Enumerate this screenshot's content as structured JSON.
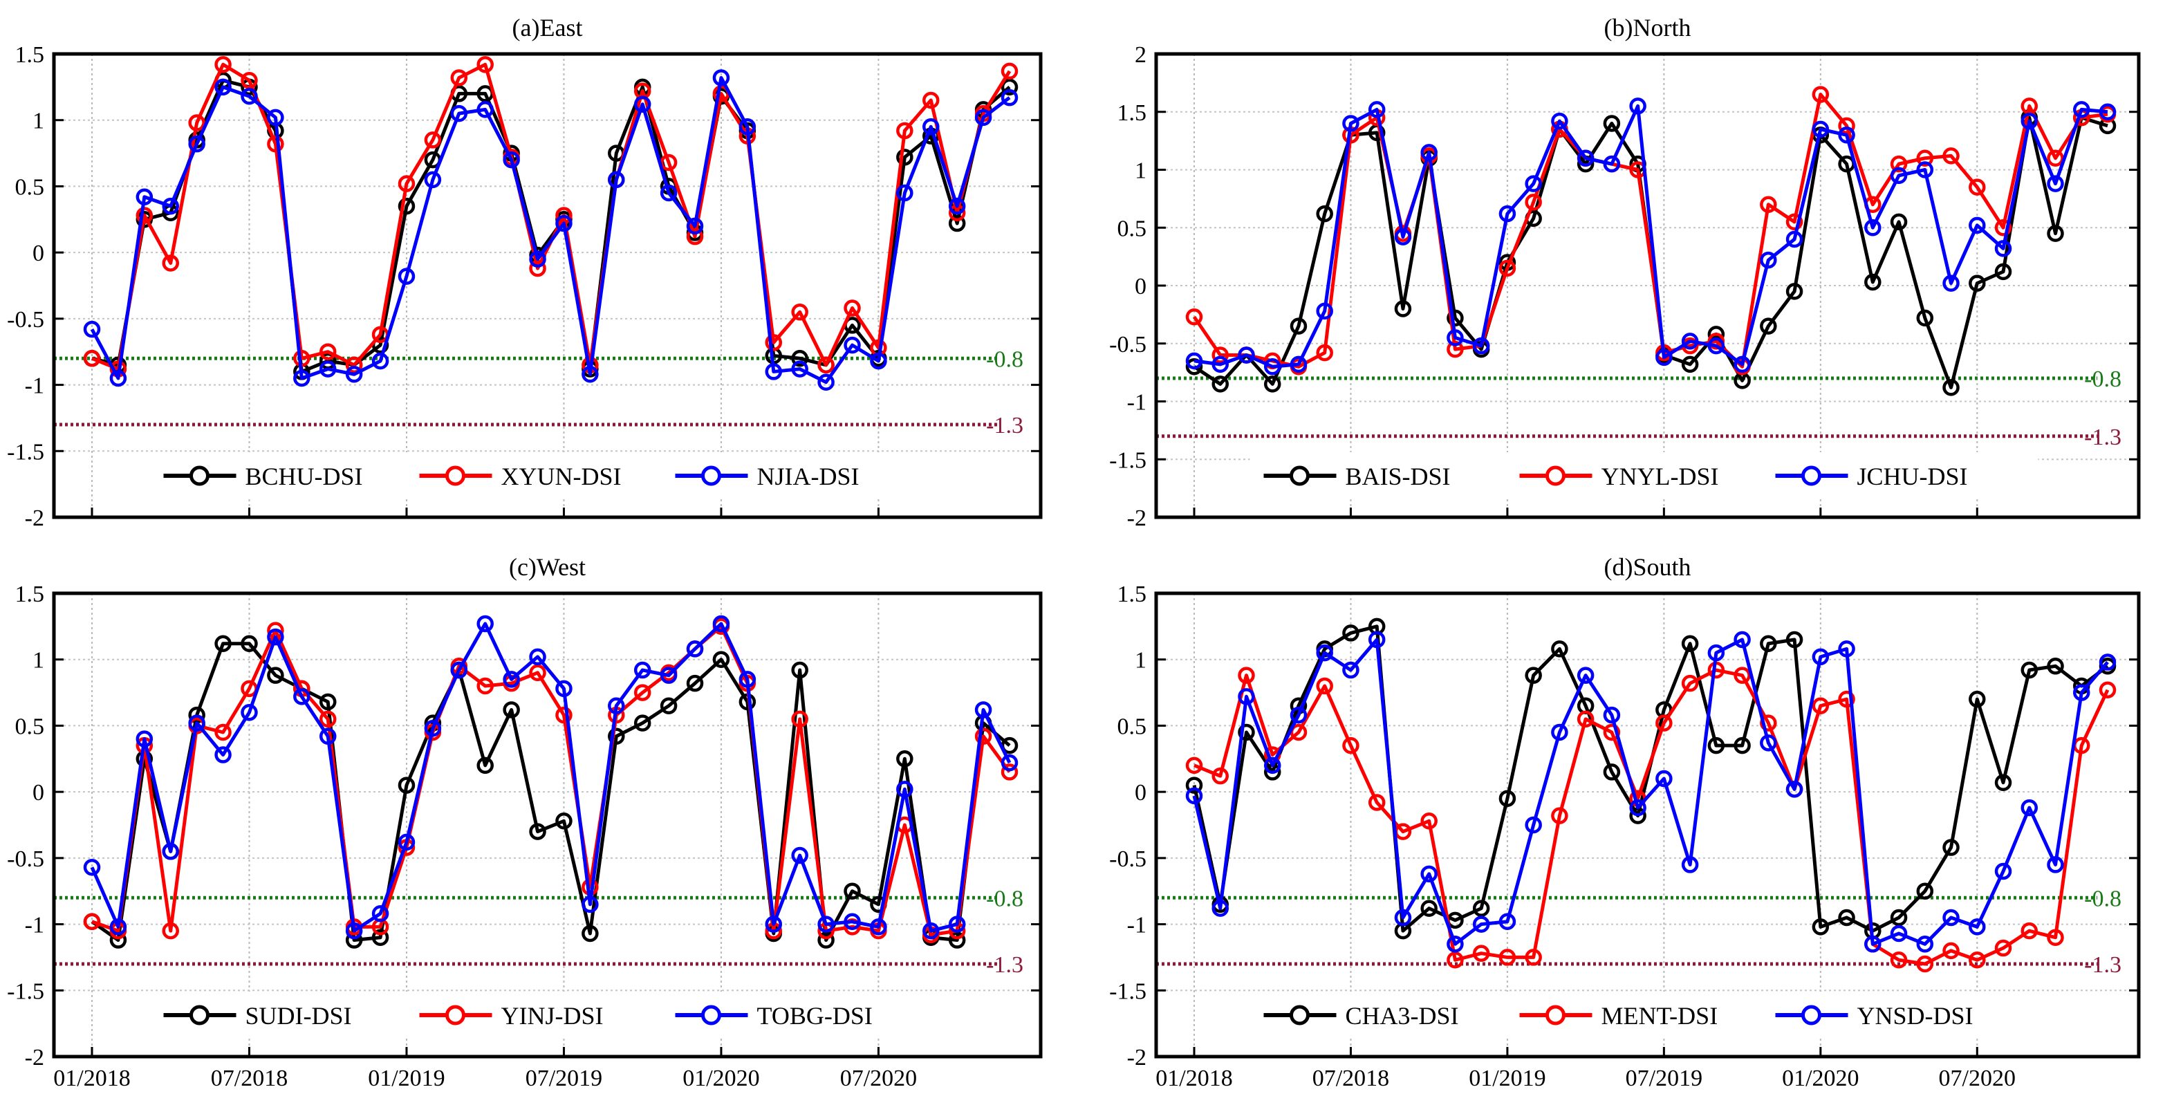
{
  "figure": {
    "x_tick_labels": [
      "01/2018",
      "07/2018",
      "01/2019",
      "07/2019",
      "01/2020",
      "07/2020"
    ],
    "months": [
      "01/2018",
      "02/2018",
      "03/2018",
      "04/2018",
      "05/2018",
      "06/2018",
      "07/2018",
      "08/2018",
      "09/2018",
      "10/2018",
      "11/2018",
      "12/2018",
      "01/2019",
      "02/2019",
      "03/2019",
      "04/2019",
      "05/2019",
      "06/2019",
      "07/2019",
      "08/2019",
      "09/2019",
      "10/2019",
      "11/2019",
      "12/2019",
      "01/2020",
      "02/2020",
      "03/2020",
      "04/2020",
      "05/2020",
      "06/2020",
      "07/2020",
      "08/2020",
      "09/2020",
      "10/2020",
      "11/2020",
      "12/2020"
    ],
    "threshold_moderate": {
      "value": -0.8,
      "label": "-0.8",
      "color": "#1a7a1a"
    },
    "threshold_severe": {
      "value": -1.3,
      "label": "-1.3",
      "color": "#8b1a3a"
    },
    "series_colors": [
      "#000000",
      "#ff0000",
      "#0000ff"
    ]
  },
  "chart_data": [
    {
      "type": "line",
      "title": "(a)East",
      "ylim": [
        -2,
        1.5
      ],
      "yticks": [
        -2,
        -1.5,
        -1,
        -0.5,
        0,
        0.5,
        1,
        1.5
      ],
      "ytick_labels": [
        "-2",
        "-1.5",
        "-1",
        "-0.5",
        "0",
        "0.5",
        "1",
        "1.5"
      ],
      "legend_position": "bottom-center",
      "series": [
        {
          "name": "BCHU-DSI",
          "values": [
            -0.8,
            -0.85,
            0.25,
            0.3,
            0.85,
            1.3,
            1.25,
            0.92,
            -0.9,
            -0.82,
            -0.85,
            -0.7,
            0.35,
            0.7,
            1.2,
            1.2,
            0.75,
            -0.02,
            0.25,
            -0.88,
            0.75,
            1.25,
            0.5,
            0.15,
            1.18,
            0.92,
            -0.78,
            -0.8,
            -0.85,
            -0.55,
            -0.8,
            0.72,
            0.88,
            0.22,
            1.08,
            1.25
          ]
        },
        {
          "name": "XYUN-DSI",
          "values": [
            -0.8,
            -0.88,
            0.28,
            -0.08,
            0.98,
            1.42,
            1.3,
            0.82,
            -0.8,
            -0.75,
            -0.85,
            -0.62,
            0.52,
            0.85,
            1.32,
            1.42,
            0.72,
            -0.12,
            0.28,
            -0.85,
            0.55,
            1.22,
            0.68,
            0.12,
            1.2,
            0.88,
            -0.68,
            -0.45,
            -0.85,
            -0.42,
            -0.72,
            0.92,
            1.15,
            0.3,
            1.05,
            1.37
          ]
        },
        {
          "name": "NJIA-DSI",
          "values": [
            -0.58,
            -0.95,
            0.42,
            0.35,
            0.82,
            1.25,
            1.18,
            1.02,
            -0.95,
            -0.88,
            -0.92,
            -0.82,
            -0.18,
            0.55,
            1.05,
            1.08,
            0.7,
            -0.05,
            0.22,
            -0.92,
            0.55,
            1.12,
            0.45,
            0.2,
            1.32,
            0.95,
            -0.9,
            -0.88,
            -0.98,
            -0.7,
            -0.82,
            0.45,
            0.95,
            0.35,
            1.02,
            1.17
          ]
        }
      ]
    },
    {
      "type": "line",
      "title": "(b)North",
      "ylim": [
        -2,
        2
      ],
      "yticks": [
        -2,
        -1.5,
        -1,
        -0.5,
        0,
        0.5,
        1,
        1.5,
        2
      ],
      "ytick_labels": [
        "-2",
        "-1.5",
        "-1",
        "-0.5",
        "0",
        "0.5",
        "1",
        "1.5",
        "2"
      ],
      "legend_position": "bottom-center",
      "series": [
        {
          "name": "BAIS-DSI",
          "values": [
            -0.7,
            -0.85,
            -0.6,
            -0.85,
            -0.35,
            0.62,
            1.3,
            1.32,
            -0.2,
            1.1,
            -0.28,
            -0.55,
            0.2,
            0.58,
            1.35,
            1.05,
            1.4,
            1.05,
            -0.6,
            -0.68,
            -0.42,
            -0.82,
            -0.35,
            -0.05,
            1.3,
            1.05,
            0.03,
            0.55,
            -0.28,
            -0.88,
            0.02,
            0.12,
            1.45,
            0.45,
            1.45,
            1.38
          ]
        },
        {
          "name": "YNYL-DSI",
          "values": [
            -0.27,
            -0.6,
            -0.6,
            -0.65,
            -0.7,
            -0.58,
            1.3,
            1.45,
            0.45,
            1.12,
            -0.55,
            -0.52,
            0.15,
            0.72,
            1.35,
            1.1,
            1.05,
            1.0,
            -0.58,
            -0.52,
            -0.48,
            -0.7,
            0.7,
            0.55,
            1.65,
            1.38,
            0.7,
            1.05,
            1.1,
            1.12,
            0.85,
            0.5,
            1.55,
            1.1,
            1.45,
            1.48
          ]
        },
        {
          "name": "JCHU-DSI",
          "values": [
            -0.65,
            -0.68,
            -0.6,
            -0.7,
            -0.68,
            -0.22,
            1.4,
            1.52,
            0.42,
            1.15,
            -0.45,
            -0.52,
            0.62,
            0.88,
            1.42,
            1.1,
            1.05,
            1.55,
            -0.62,
            -0.48,
            -0.52,
            -0.68,
            0.22,
            0.4,
            1.35,
            1.3,
            0.5,
            0.95,
            1.0,
            0.02,
            0.52,
            0.32,
            1.42,
            0.88,
            1.52,
            1.5
          ]
        }
      ]
    },
    {
      "type": "line",
      "title": "(c)West",
      "ylim": [
        -2,
        1.5
      ],
      "yticks": [
        -2,
        -1.5,
        -1,
        -0.5,
        0,
        0.5,
        1,
        1.5
      ],
      "ytick_labels": [
        "-2",
        "-1.5",
        "-1",
        "-0.5",
        "0",
        "0.5",
        "1",
        "1.5"
      ],
      "legend_position": "bottom-center",
      "series": [
        {
          "name": "SUDI-DSI",
          "values": [
            -0.98,
            -1.12,
            0.25,
            -0.45,
            0.58,
            1.12,
            1.12,
            0.88,
            0.78,
            0.68,
            -1.12,
            -1.1,
            0.05,
            0.52,
            0.92,
            0.2,
            0.62,
            -0.3,
            -0.22,
            -1.07,
            0.42,
            0.52,
            0.65,
            0.82,
            1.0,
            0.68,
            -1.07,
            0.92,
            -1.12,
            -0.75,
            -0.85,
            0.25,
            -1.1,
            -1.12,
            0.52,
            0.35
          ]
        },
        {
          "name": "YINJ-DSI",
          "values": [
            -0.98,
            -1.05,
            0.35,
            -1.05,
            0.5,
            0.45,
            0.78,
            1.22,
            0.78,
            0.55,
            -1.02,
            -1.02,
            -0.42,
            0.45,
            0.95,
            0.8,
            0.82,
            0.9,
            0.58,
            -0.72,
            0.58,
            0.75,
            0.9,
            1.08,
            1.25,
            0.82,
            -1.05,
            0.55,
            -1.05,
            -1.02,
            -1.05,
            -0.25,
            -1.08,
            -1.05,
            0.42,
            0.15
          ]
        },
        {
          "name": "TOBG-DSI",
          "values": [
            -0.57,
            -1.02,
            0.4,
            -0.45,
            0.52,
            0.28,
            0.6,
            1.17,
            0.72,
            0.42,
            -1.05,
            -0.92,
            -0.38,
            0.48,
            0.92,
            1.27,
            0.85,
            1.02,
            0.78,
            -0.85,
            0.65,
            0.92,
            0.88,
            1.08,
            1.27,
            0.85,
            -1.0,
            -0.48,
            -1.0,
            -0.98,
            -1.02,
            0.02,
            -1.05,
            -1.0,
            0.62,
            0.22
          ]
        }
      ]
    },
    {
      "type": "line",
      "title": "(d)South",
      "ylim": [
        -2,
        1.5
      ],
      "yticks": [
        -2,
        -1.5,
        -1,
        -0.5,
        0,
        0.5,
        1,
        1.5
      ],
      "ytick_labels": [
        "-2",
        "-1.5",
        "-1",
        "-0.5",
        "0",
        "0.5",
        "1",
        "1.5"
      ],
      "legend_position": "bottom-center",
      "series": [
        {
          "name": "CHA3-DSI",
          "values": [
            0.05,
            -0.85,
            0.45,
            0.15,
            0.65,
            1.08,
            1.2,
            1.25,
            -1.05,
            -0.88,
            -0.97,
            -0.88,
            -0.05,
            0.88,
            1.08,
            0.65,
            0.15,
            -0.18,
            0.62,
            1.12,
            0.35,
            0.35,
            1.12,
            1.15,
            -1.02,
            -0.95,
            -1.05,
            -0.95,
            -0.75,
            -0.42,
            0.7,
            0.07,
            0.92,
            0.95,
            0.8,
            0.95
          ]
        },
        {
          "name": "MENT-DSI",
          "values": [
            0.2,
            0.12,
            0.88,
            0.28,
            0.45,
            0.8,
            0.35,
            -0.08,
            -0.3,
            -0.22,
            -1.27,
            -1.22,
            -1.25,
            -1.25,
            -0.18,
            0.55,
            0.45,
            -0.05,
            0.52,
            0.82,
            0.92,
            0.88,
            0.52,
            0.02,
            0.65,
            0.7,
            -1.15,
            -1.27,
            -1.3,
            -1.2,
            -1.27,
            -1.18,
            -1.05,
            -1.1,
            0.35,
            0.77
          ]
        },
        {
          "name": "YNSD-DSI",
          "values": [
            -0.03,
            -0.88,
            0.72,
            0.2,
            0.58,
            1.05,
            0.92,
            1.15,
            -0.95,
            -0.62,
            -1.15,
            -1.0,
            -0.98,
            -0.25,
            0.45,
            0.88,
            0.58,
            -0.12,
            0.1,
            -0.55,
            1.05,
            1.15,
            0.37,
            0.02,
            1.02,
            1.08,
            -1.15,
            -1.07,
            -1.15,
            -0.95,
            -1.02,
            -0.6,
            -0.12,
            -0.55,
            0.75,
            0.98
          ]
        }
      ]
    }
  ]
}
